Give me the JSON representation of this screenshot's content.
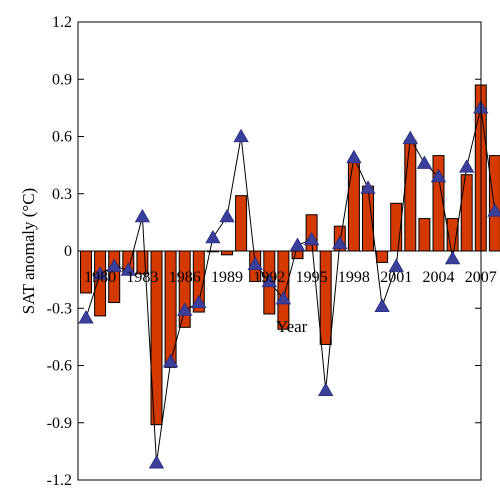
{
  "chart_data": {
    "type": "bar",
    "ylabel": "SAT anomaly (°C)",
    "xlabel": "Year",
    "ylim": [
      -1.2,
      1.2
    ],
    "y_ticks": [
      1.2,
      0.9,
      0.6,
      0.3,
      0,
      -0.3,
      -0.6,
      -0.9,
      -1.2
    ],
    "y_tick_labels": [
      "1.2",
      "0.9",
      "0.6",
      "0.3",
      "0",
      "-0.3",
      "-0.6",
      "-0.9",
      "-1.2"
    ],
    "x_tick_labels": [
      {
        "year": 1980,
        "label": "1980"
      },
      {
        "year": 1983,
        "label": "1983"
      },
      {
        "year": 1986,
        "label": "1986"
      },
      {
        "year": 1989,
        "label": "1989"
      },
      {
        "year": 1992,
        "label": "1992"
      },
      {
        "year": 1995,
        "label": "1995"
      },
      {
        "year": 1998,
        "label": "1998"
      },
      {
        "year": 2001,
        "label": "2001"
      },
      {
        "year": 2004,
        "label": "2004"
      },
      {
        "year": 2007,
        "label": "2007"
      }
    ],
    "years": [
      1979,
      1980,
      1981,
      1982,
      1983,
      1984,
      1985,
      1986,
      1987,
      1988,
      1989,
      1990,
      1991,
      1992,
      1993,
      1994,
      1995,
      1996,
      1997,
      1998,
      1999,
      2000,
      2001,
      2002,
      2003,
      2004,
      2005,
      2006,
      2007,
      2008
    ],
    "series": [
      {
        "values": [
          -0.22,
          -0.34,
          -0.27,
          -0.11,
          -0.12,
          -0.91,
          -0.61,
          -0.4,
          -0.32,
          -0.0,
          -0.02,
          0.29,
          -0.16,
          -0.33,
          -0.41,
          -0.04,
          0.19,
          -0.49,
          0.13,
          0.47,
          0.34,
          -0.06,
          0.25,
          0.58,
          0.17,
          0.5,
          0.17,
          0.4,
          0.87,
          0.5
        ],
        "color": "#d43a00"
      },
      {
        "values": [
          -0.35,
          -0.12,
          -0.08,
          -0.1,
          0.18,
          -1.11,
          -0.58,
          -0.31,
          -0.27,
          0.07,
          0.18,
          0.6,
          -0.07,
          -0.16,
          -0.25,
          0.03,
          0.06,
          -0.73,
          0.04,
          0.49,
          0.33,
          -0.29,
          -0.08,
          0.59,
          0.46,
          0.39,
          -0.04,
          0.44,
          0.75,
          0.21
        ],
        "color": "#3b3f9a"
      }
    ],
    "grid": false,
    "legend": "none"
  }
}
